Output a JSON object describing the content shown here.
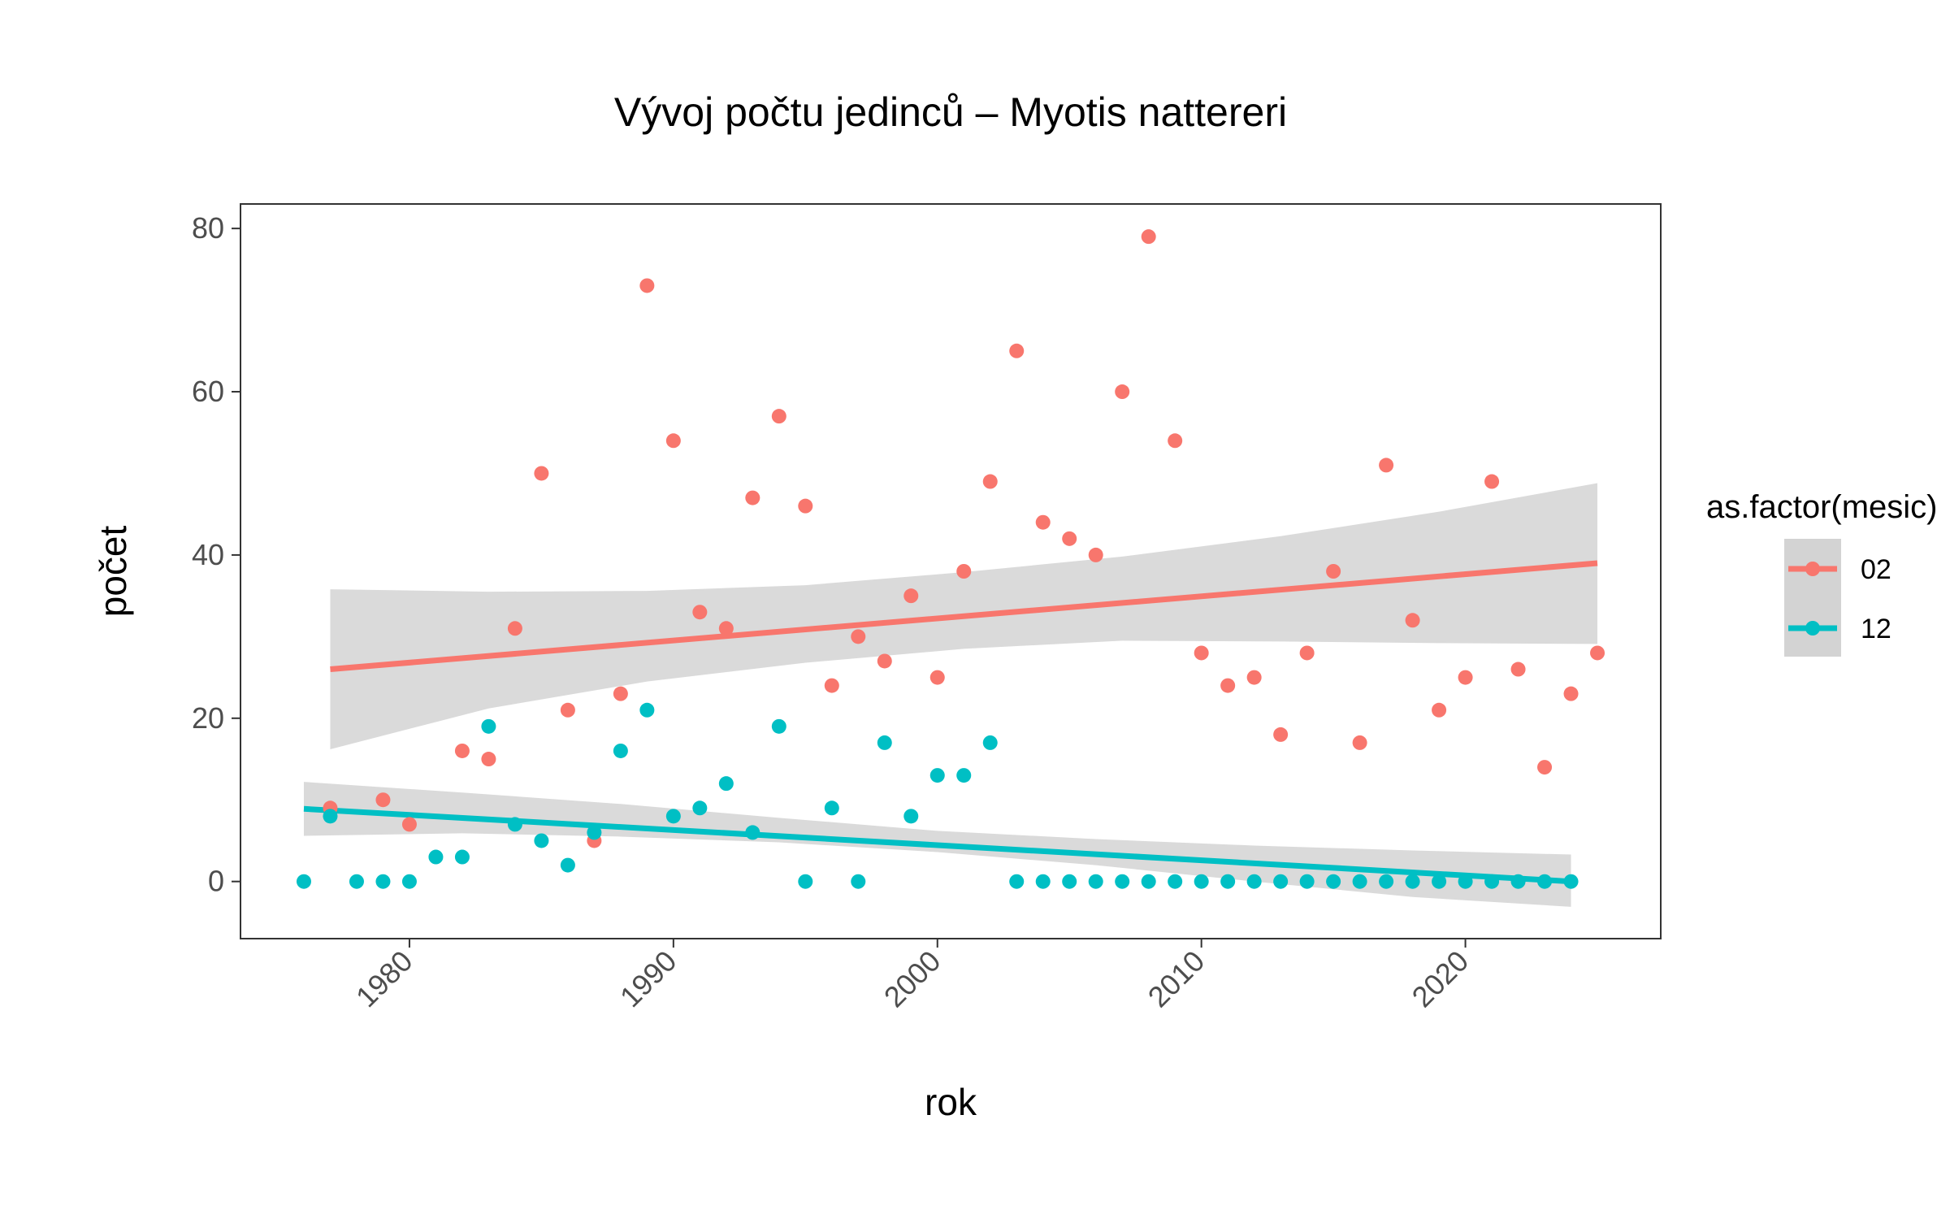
{
  "chart_data": {
    "type": "scatter",
    "title": "Vývoj počtu jedinců – Myotis nattereri",
    "xlabel": "rok",
    "ylabel": "počet",
    "xlim": [
      1973.6,
      2027.4
    ],
    "ylim": [
      -7,
      83
    ],
    "x_ticks": [
      1980,
      1990,
      2000,
      2010,
      2020
    ],
    "x_tick_labels": [
      "1980",
      "1990",
      "2000",
      "2010",
      "2020"
    ],
    "y_ticks": [
      0,
      20,
      40,
      60,
      80
    ],
    "y_tick_labels": [
      "0",
      "20",
      "40",
      "60",
      "80"
    ],
    "grid": false,
    "legend": {
      "title": "as.factor(mesic)",
      "position": "right"
    },
    "series": [
      {
        "name": "02",
        "color": "#F8766D",
        "points": [
          [
            1977,
            9
          ],
          [
            1979,
            10
          ],
          [
            1980,
            7
          ],
          [
            1982,
            16
          ],
          [
            1983,
            15
          ],
          [
            1984,
            31
          ],
          [
            1985,
            50
          ],
          [
            1986,
            21
          ],
          [
            1987,
            5
          ],
          [
            1988,
            23
          ],
          [
            1989,
            73
          ],
          [
            1990,
            54
          ],
          [
            1991,
            33
          ],
          [
            1992,
            31
          ],
          [
            1993,
            47
          ],
          [
            1994,
            57
          ],
          [
            1995,
            46
          ],
          [
            1996,
            24
          ],
          [
            1997,
            30
          ],
          [
            1998,
            27
          ],
          [
            1999,
            35
          ],
          [
            2000,
            25
          ],
          [
            2001,
            38
          ],
          [
            2002,
            49
          ],
          [
            2003,
            65
          ],
          [
            2004,
            44
          ],
          [
            2005,
            42
          ],
          [
            2006,
            40
          ],
          [
            2007,
            60
          ],
          [
            2008,
            79
          ],
          [
            2009,
            54
          ],
          [
            2010,
            28
          ],
          [
            2011,
            24
          ],
          [
            2012,
            25
          ],
          [
            2013,
            18
          ],
          [
            2014,
            28
          ],
          [
            2015,
            38
          ],
          [
            2016,
            17
          ],
          [
            2017,
            51
          ],
          [
            2018,
            32
          ],
          [
            2019,
            21
          ],
          [
            2020,
            25
          ],
          [
            2021,
            49
          ],
          [
            2022,
            26
          ],
          [
            2023,
            14
          ],
          [
            2024,
            23
          ],
          [
            2025,
            28
          ]
        ],
        "trend": {
          "x": [
            1977,
            2025
          ],
          "y": [
            26,
            39
          ]
        },
        "ci": {
          "x": [
            1977,
            1983,
            1989,
            1995,
            2001,
            2007,
            2013,
            2019,
            2025
          ],
          "lower": [
            16.2,
            21.2,
            24.5,
            26.8,
            28.5,
            29.5,
            29.4,
            29.2,
            29.1
          ],
          "upper": [
            35.8,
            35.5,
            35.6,
            36.3,
            37.9,
            39.8,
            42.3,
            45.3,
            48.8
          ]
        }
      },
      {
        "name": "12",
        "color": "#00BFC4",
        "points": [
          [
            1976,
            0
          ],
          [
            1977,
            8
          ],
          [
            1978,
            0
          ],
          [
            1979,
            0
          ],
          [
            1980,
            0
          ],
          [
            1981,
            3
          ],
          [
            1982,
            3
          ],
          [
            1983,
            19
          ],
          [
            1984,
            7
          ],
          [
            1985,
            5
          ],
          [
            1986,
            2
          ],
          [
            1987,
            6
          ],
          [
            1988,
            16
          ],
          [
            1989,
            21
          ],
          [
            1990,
            8
          ],
          [
            1991,
            9
          ],
          [
            1992,
            12
          ],
          [
            1993,
            6
          ],
          [
            1994,
            19
          ],
          [
            1995,
            0
          ],
          [
            1996,
            9
          ],
          [
            1997,
            0
          ],
          [
            1998,
            17
          ],
          [
            1999,
            8
          ],
          [
            2000,
            13
          ],
          [
            2001,
            13
          ],
          [
            2002,
            17
          ],
          [
            2003,
            0
          ],
          [
            2004,
            0
          ],
          [
            2005,
            0
          ],
          [
            2006,
            0
          ],
          [
            2007,
            0
          ],
          [
            2008,
            0
          ],
          [
            2009,
            0
          ],
          [
            2010,
            0
          ],
          [
            2011,
            0
          ],
          [
            2012,
            0
          ],
          [
            2013,
            0
          ],
          [
            2014,
            0
          ],
          [
            2015,
            0
          ],
          [
            2016,
            0
          ],
          [
            2017,
            0
          ],
          [
            2018,
            0
          ],
          [
            2019,
            0
          ],
          [
            2020,
            0
          ],
          [
            2021,
            0
          ],
          [
            2022,
            0
          ],
          [
            2023,
            0
          ],
          [
            2024,
            0
          ]
        ],
        "trend": {
          "x": [
            1976,
            2024
          ],
          "y": [
            8.9,
            0
          ]
        },
        "ci": {
          "x": [
            1976,
            1982,
            1988,
            1994,
            2000,
            2006,
            2012,
            2018,
            2024
          ],
          "lower": [
            5.6,
            5.9,
            5.5,
            4.8,
            3.6,
            2.0,
            0.0,
            -1.9,
            -3.1
          ],
          "upper": [
            12.2,
            10.9,
            9.5,
            7.8,
            6.2,
            5.2,
            4.4,
            3.8,
            3.3
          ]
        }
      }
    ],
    "ci_fill_color": "#D3D3D3"
  }
}
